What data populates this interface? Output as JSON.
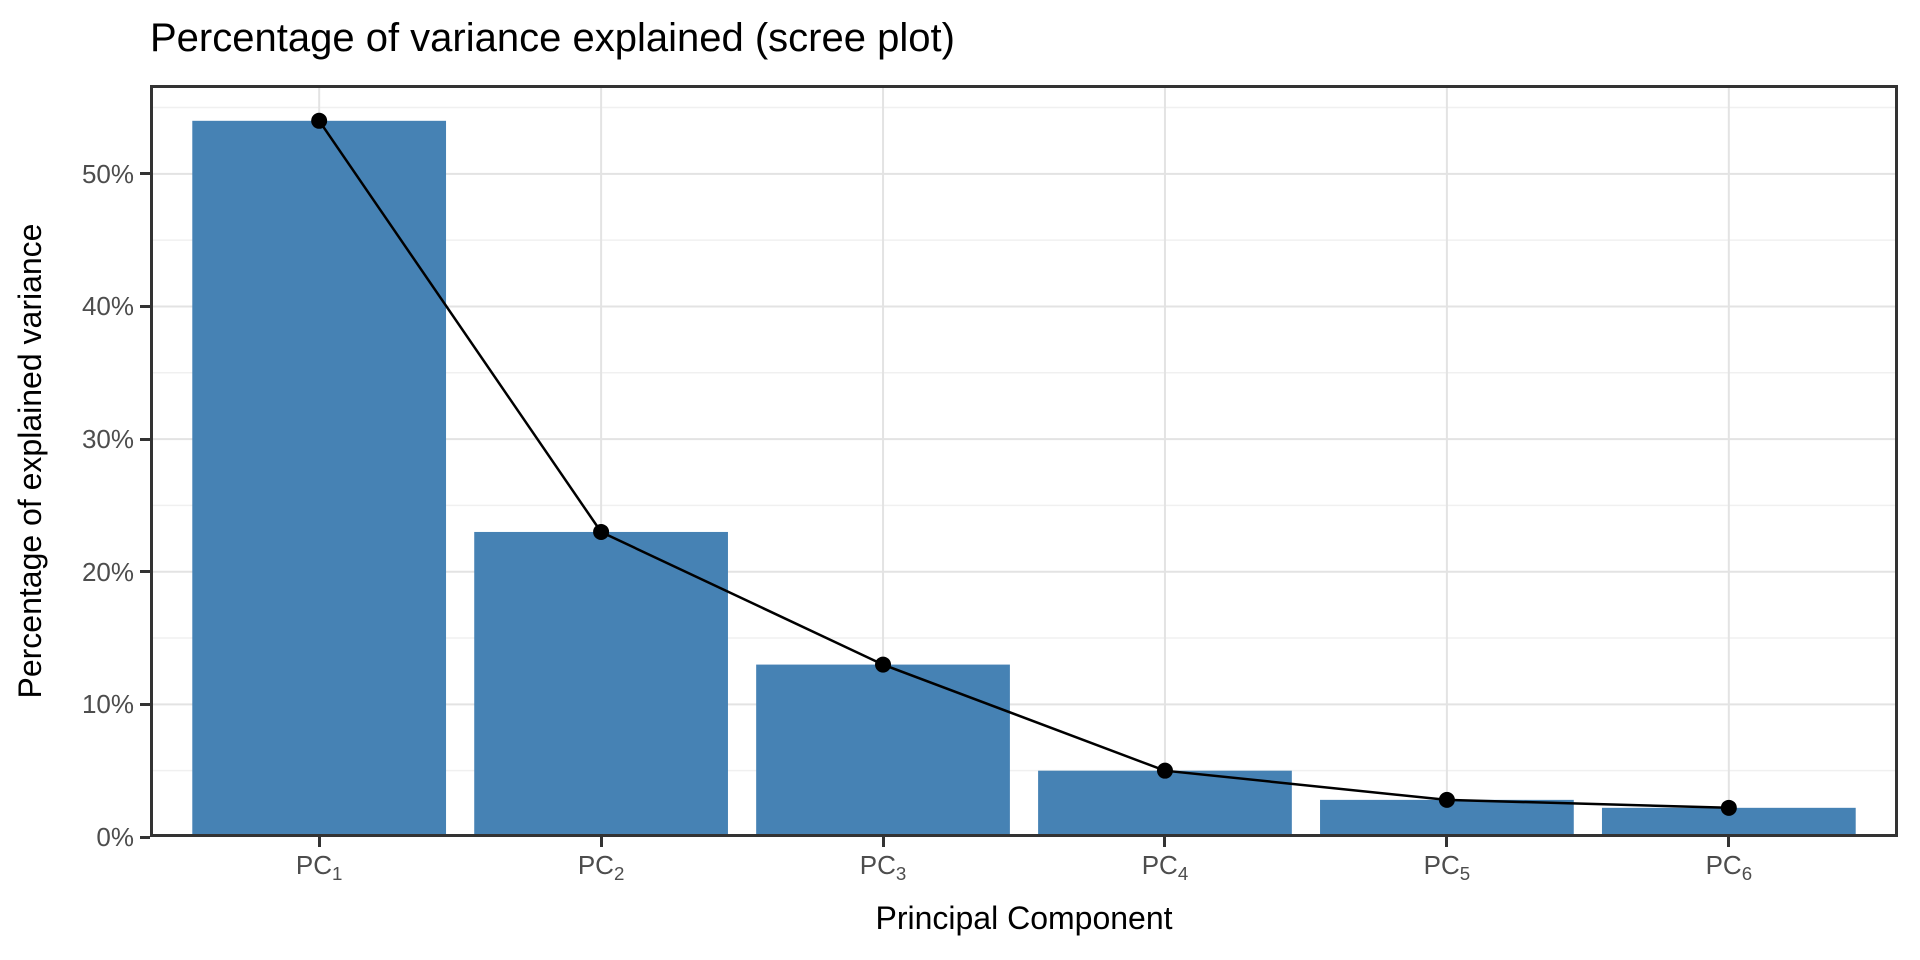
{
  "chart_data": {
    "type": "bar",
    "overlay": "line-with-points",
    "title": "Percentage of variance explained (scree plot)",
    "xlabel": "Principal Component",
    "ylabel": "Percentage of explained variance",
    "categories": [
      {
        "text": "PC",
        "sub": "1"
      },
      {
        "text": "PC",
        "sub": "2"
      },
      {
        "text": "PC",
        "sub": "3"
      },
      {
        "text": "PC",
        "sub": "4"
      },
      {
        "text": "PC",
        "sub": "5"
      },
      {
        "text": "PC",
        "sub": "6"
      }
    ],
    "values": [
      54,
      23,
      13,
      5,
      2.8,
      2.2
    ],
    "unit": "%",
    "ylim": [
      0,
      56.7
    ],
    "yticks": [
      {
        "value": 0,
        "label": "0%"
      },
      {
        "value": 10,
        "label": "10%"
      },
      {
        "value": 20,
        "label": "20%"
      },
      {
        "value": 30,
        "label": "30%"
      },
      {
        "value": 40,
        "label": "40%"
      },
      {
        "value": 50,
        "label": "50%"
      }
    ],
    "minor_yticks": [
      5,
      15,
      25,
      35,
      45,
      55
    ],
    "grid": "horizontal major+minor, vertical major at category centers",
    "legend": "none",
    "colors": {
      "bar": "#4682B4",
      "line": "#000000",
      "point": "#000000",
      "grid_major": "#E3E3E3",
      "grid_minor": "#F0F0F0",
      "panel_border": "#333333",
      "tick": "#333333",
      "tick_label": "#4D4D4D",
      "title": "#000000",
      "axis_title": "#000000",
      "background": "#FFFFFF"
    }
  }
}
